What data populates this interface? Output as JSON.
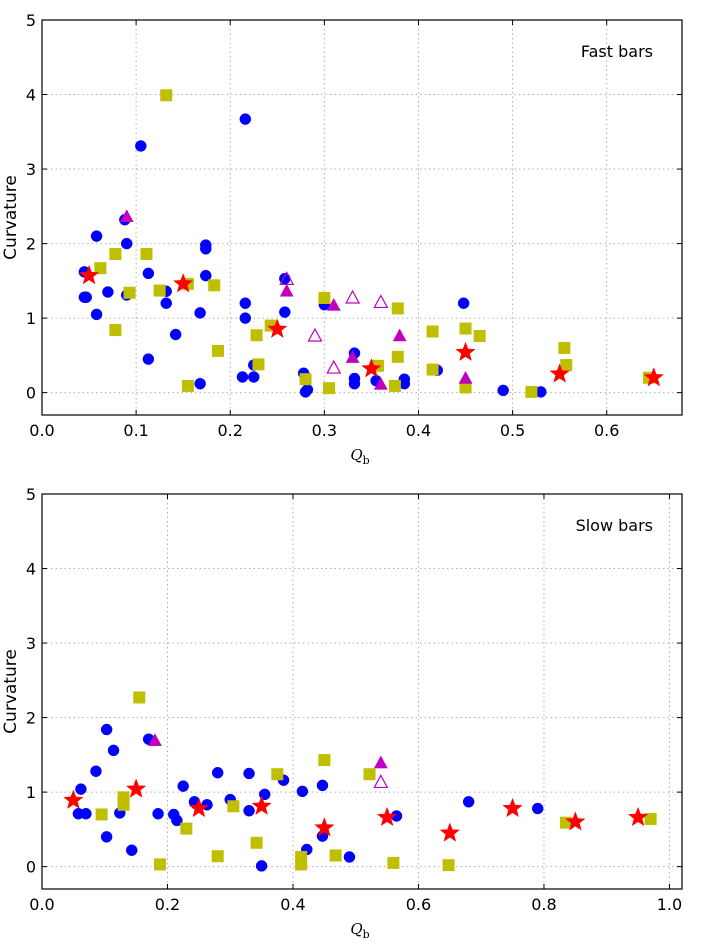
{
  "chart_data": [
    {
      "type": "scatter",
      "title": "Fast bars",
      "xlabel": "Q",
      "xlabel_sub": "b",
      "ylabel": "Curvature",
      "xlim": [
        0.0,
        0.68
      ],
      "ylim": [
        -0.3,
        5.0
      ],
      "xticks": [
        0.0,
        0.1,
        0.2,
        0.3,
        0.4,
        0.5,
        0.6
      ],
      "xtick_labels": [
        "0.0",
        "0.1",
        "0.2",
        "0.3",
        "0.4",
        "0.5",
        "0.6"
      ],
      "yticks": [
        0,
        1,
        2,
        3,
        4,
        5
      ],
      "ytick_labels": [
        "0",
        "1",
        "2",
        "3",
        "4",
        "5"
      ],
      "grid": true,
      "series": [
        {
          "name": "circles",
          "marker": "circle",
          "color": "#0000ff",
          "points": [
            [
              0.045,
              1.62
            ],
            [
              0.045,
              1.28
            ],
            [
              0.047,
              1.28
            ],
            [
              0.058,
              2.1
            ],
            [
              0.058,
              1.05
            ],
            [
              0.07,
              1.35
            ],
            [
              0.088,
              2.32
            ],
            [
              0.09,
              2.0
            ],
            [
              0.09,
              1.31
            ],
            [
              0.105,
              3.31
            ],
            [
              0.113,
              1.6
            ],
            [
              0.113,
              0.45
            ],
            [
              0.132,
              1.36
            ],
            [
              0.132,
              1.2
            ],
            [
              0.142,
              0.78
            ],
            [
              0.168,
              1.07
            ],
            [
              0.168,
              0.12
            ],
            [
              0.174,
              1.98
            ],
            [
              0.174,
              1.93
            ],
            [
              0.174,
              1.57
            ],
            [
              0.213,
              0.21
            ],
            [
              0.216,
              3.67
            ],
            [
              0.216,
              1.2
            ],
            [
              0.216,
              1.0
            ],
            [
              0.225,
              0.37
            ],
            [
              0.225,
              0.21
            ],
            [
              0.258,
              1.53
            ],
            [
              0.258,
              1.08
            ],
            [
              0.278,
              0.26
            ],
            [
              0.28,
              0.01
            ],
            [
              0.282,
              0.04
            ],
            [
              0.3,
              1.25
            ],
            [
              0.3,
              1.18
            ],
            [
              0.332,
              0.53
            ],
            [
              0.332,
              0.19
            ],
            [
              0.332,
              0.12
            ],
            [
              0.355,
              0.16
            ],
            [
              0.385,
              0.18
            ],
            [
              0.385,
              0.12
            ],
            [
              0.42,
              0.3
            ],
            [
              0.448,
              1.2
            ],
            [
              0.49,
              0.03
            ],
            [
              0.53,
              0.01
            ]
          ]
        },
        {
          "name": "squares",
          "marker": "square",
          "color": "#bfbf00",
          "points": [
            [
              0.062,
              1.67
            ],
            [
              0.078,
              1.86
            ],
            [
              0.078,
              0.84
            ],
            [
              0.093,
              1.34
            ],
            [
              0.111,
              1.86
            ],
            [
              0.125,
              1.37
            ],
            [
              0.132,
              3.99
            ],
            [
              0.155,
              0.09
            ],
            [
              0.155,
              1.46
            ],
            [
              0.183,
              1.44
            ],
            [
              0.187,
              0.56
            ],
            [
              0.228,
              0.77
            ],
            [
              0.23,
              0.38
            ],
            [
              0.243,
              0.9
            ],
            [
              0.28,
              0.18
            ],
            [
              0.3,
              1.27
            ],
            [
              0.305,
              0.06
            ],
            [
              0.357,
              0.36
            ],
            [
              0.375,
              0.09
            ],
            [
              0.378,
              1.13
            ],
            [
              0.378,
              0.48
            ],
            [
              0.415,
              0.31
            ],
            [
              0.415,
              0.82
            ],
            [
              0.45,
              0.86
            ],
            [
              0.45,
              0.07
            ],
            [
              0.465,
              0.76
            ],
            [
              0.52,
              0.01
            ],
            [
              0.555,
              0.6
            ],
            [
              0.557,
              0.37
            ],
            [
              0.645,
              0.2
            ]
          ]
        },
        {
          "name": "filled triangles",
          "marker": "triangle",
          "color": "#bf00bf",
          "points": [
            [
              0.09,
              2.36
            ],
            [
              0.26,
              1.36
            ],
            [
              0.31,
              1.17
            ],
            [
              0.33,
              0.47
            ],
            [
              0.36,
              0.11
            ],
            [
              0.38,
              0.76
            ],
            [
              0.45,
              0.19
            ]
          ]
        },
        {
          "name": "open triangles",
          "marker": "triangle-open",
          "color": "#bf00bf",
          "points": [
            [
              0.26,
              1.52
            ],
            [
              0.29,
              0.76
            ],
            [
              0.31,
              0.33
            ],
            [
              0.33,
              1.27
            ],
            [
              0.36,
              1.21
            ]
          ]
        },
        {
          "name": "stars",
          "marker": "star",
          "color": "#ff0000",
          "points": [
            [
              0.05,
              1.57
            ],
            [
              0.15,
              1.46
            ],
            [
              0.25,
              0.85
            ],
            [
              0.35,
              0.32
            ],
            [
              0.45,
              0.54
            ],
            [
              0.55,
              0.25
            ],
            [
              0.65,
              0.2
            ]
          ]
        }
      ]
    },
    {
      "type": "scatter",
      "title": "Slow bars",
      "xlabel": "Q",
      "xlabel_sub": "b",
      "ylabel": "Curvature",
      "xlim": [
        0.0,
        1.02
      ],
      "ylim": [
        -0.3,
        5.0
      ],
      "xticks": [
        0.0,
        0.2,
        0.4,
        0.6,
        0.8,
        1.0
      ],
      "xtick_labels": [
        "0.0",
        "0.2",
        "0.4",
        "0.6",
        "0.8",
        "1.0"
      ],
      "yticks": [
        0,
        1,
        2,
        3,
        4,
        5
      ],
      "ytick_labels": [
        "0",
        "1",
        "2",
        "3",
        "4",
        "5"
      ],
      "grid": true,
      "series": [
        {
          "name": "circles",
          "marker": "circle",
          "color": "#0000ff",
          "points": [
            [
              0.058,
              0.71
            ],
            [
              0.062,
              1.04
            ],
            [
              0.07,
              0.71
            ],
            [
              0.086,
              1.28
            ],
            [
              0.103,
              1.84
            ],
            [
              0.103,
              0.4
            ],
            [
              0.114,
              1.56
            ],
            [
              0.124,
              0.72
            ],
            [
              0.143,
              0.22
            ],
            [
              0.17,
              1.71
            ],
            [
              0.185,
              0.71
            ],
            [
              0.21,
              0.7
            ],
            [
              0.215,
              0.62
            ],
            [
              0.225,
              1.08
            ],
            [
              0.243,
              0.87
            ],
            [
              0.263,
              0.83
            ],
            [
              0.28,
              1.26
            ],
            [
              0.3,
              0.9
            ],
            [
              0.33,
              1.25
            ],
            [
              0.33,
              0.75
            ],
            [
              0.35,
              0.01
            ],
            [
              0.355,
              0.97
            ],
            [
              0.385,
              1.16
            ],
            [
              0.415,
              1.01
            ],
            [
              0.422,
              0.23
            ],
            [
              0.447,
              0.41
            ],
            [
              0.447,
              1.09
            ],
            [
              0.49,
              0.13
            ],
            [
              0.565,
              0.68
            ],
            [
              0.68,
              0.87
            ],
            [
              0.79,
              0.78
            ]
          ]
        },
        {
          "name": "squares",
          "marker": "square",
          "color": "#bfbf00",
          "points": [
            [
              0.095,
              0.7
            ],
            [
              0.13,
              0.93
            ],
            [
              0.13,
              0.83
            ],
            [
              0.155,
              2.27
            ],
            [
              0.188,
              0.03
            ],
            [
              0.23,
              0.51
            ],
            [
              0.28,
              0.14
            ],
            [
              0.305,
              0.81
            ],
            [
              0.342,
              0.32
            ],
            [
              0.375,
              1.24
            ],
            [
              0.413,
              0.13
            ],
            [
              0.413,
              0.03
            ],
            [
              0.45,
              1.43
            ],
            [
              0.468,
              0.15
            ],
            [
              0.522,
              1.24
            ],
            [
              0.56,
              0.05
            ],
            [
              0.648,
              0.02
            ],
            [
              0.835,
              0.59
            ],
            [
              0.97,
              0.64
            ]
          ]
        },
        {
          "name": "filled triangles",
          "marker": "triangle",
          "color": "#bf00bf",
          "points": [
            [
              0.18,
              1.69
            ],
            [
              0.54,
              1.39
            ]
          ]
        },
        {
          "name": "open triangles",
          "marker": "triangle-open",
          "color": "#bf00bf",
          "points": [
            [
              0.54,
              1.13
            ]
          ]
        },
        {
          "name": "stars",
          "marker": "star",
          "color": "#ff0000",
          "points": [
            [
              0.05,
              0.89
            ],
            [
              0.15,
              1.04
            ],
            [
              0.25,
              0.78
            ],
            [
              0.35,
              0.81
            ],
            [
              0.45,
              0.52
            ],
            [
              0.55,
              0.66
            ],
            [
              0.65,
              0.45
            ],
            [
              0.75,
              0.78
            ],
            [
              0.85,
              0.6
            ],
            [
              0.95,
              0.66
            ]
          ]
        }
      ]
    }
  ]
}
